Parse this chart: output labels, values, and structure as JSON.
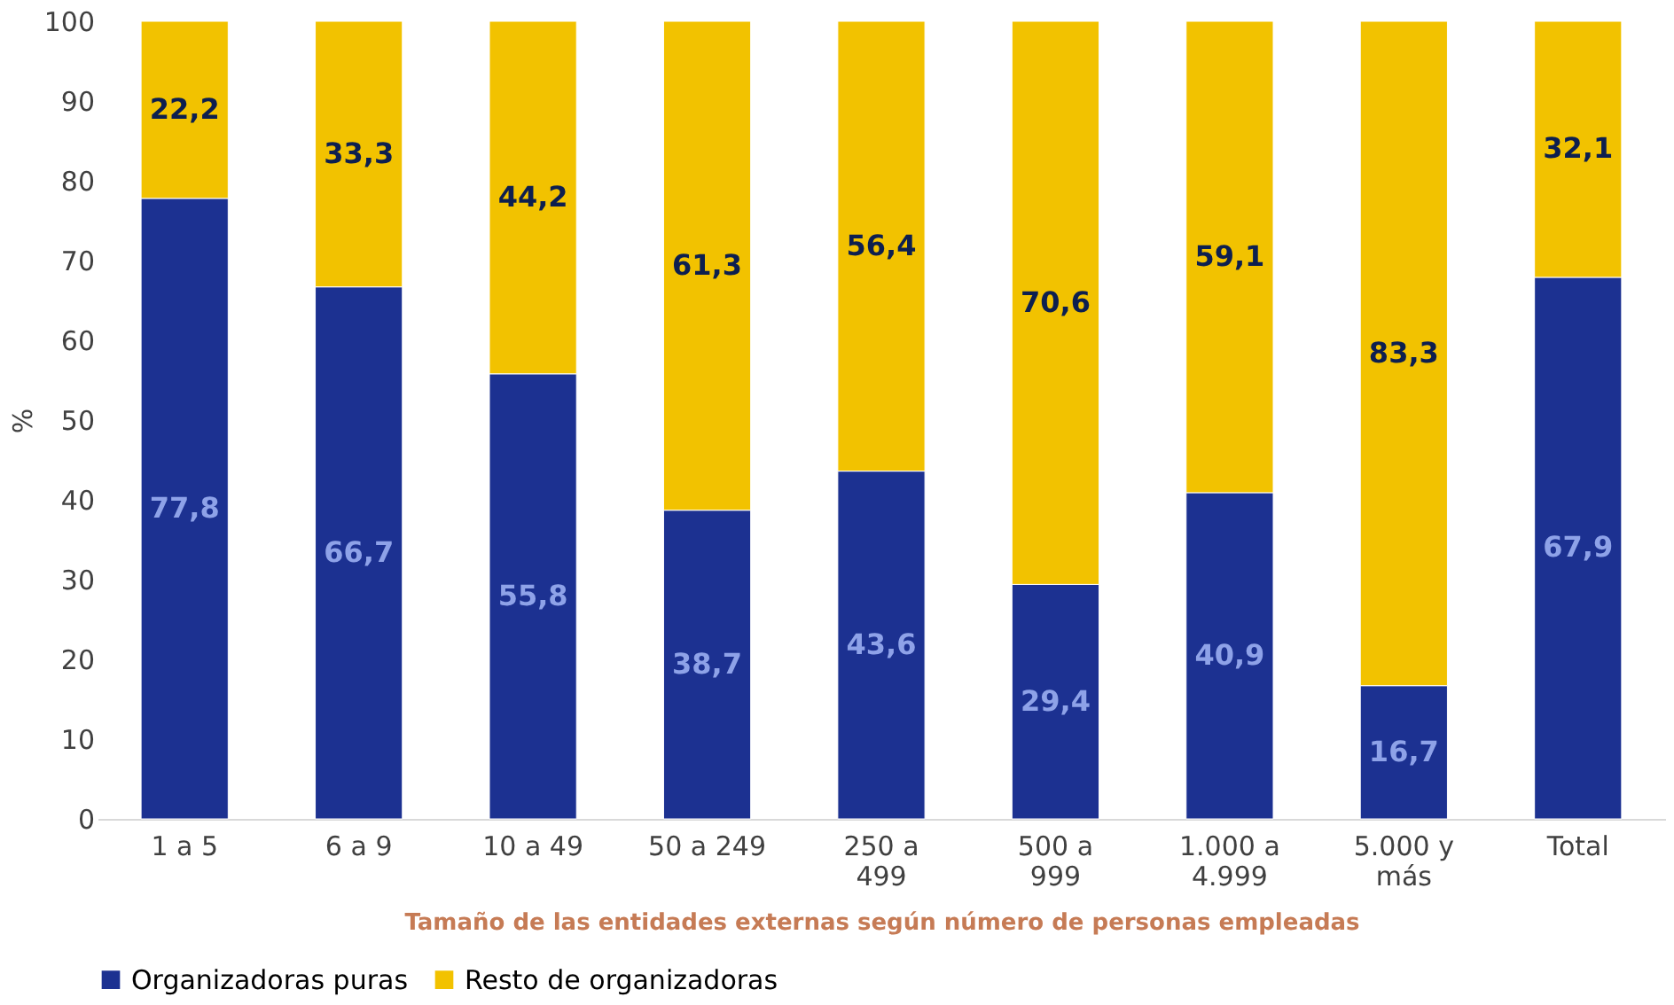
{
  "chart_data": {
    "type": "bar",
    "stacked": true,
    "xlabel": "Tamaño de las entidades externas según número de personas empleadas",
    "ylabel": "%",
    "categories": [
      "1 a 5",
      "6 a 9",
      "10 a 49",
      "50 a 249",
      "250 a\n499",
      "500 a\n999",
      "1.000 a\n4.999",
      "5.000 y\nmás",
      "Total"
    ],
    "series": [
      {
        "name": "Organizadoras puras",
        "color": "#1c3191",
        "values": [
          77.8,
          66.7,
          55.8,
          38.7,
          43.6,
          29.4,
          40.9,
          16.7,
          67.9
        ],
        "value_labels": [
          "77,8",
          "66,7",
          "55,8",
          "38,7",
          "43,6",
          "29,4",
          "40,9",
          "16,7",
          "67,9"
        ]
      },
      {
        "name": "Resto de organizadoras",
        "color": "#f2c200",
        "values": [
          22.2,
          33.3,
          44.2,
          61.3,
          56.4,
          70.6,
          59.1,
          83.3,
          32.1
        ],
        "value_labels": [
          "22,2",
          "33,3",
          "44,2",
          "61,3",
          "56,4",
          "70,6",
          "59,1",
          "83,3",
          "32,1"
        ]
      }
    ],
    "ylim": [
      0,
      100
    ],
    "yticks": [
      0,
      10,
      20,
      30,
      40,
      50,
      60,
      70,
      80,
      90,
      100
    ],
    "grid": false,
    "legend": "bottom"
  }
}
